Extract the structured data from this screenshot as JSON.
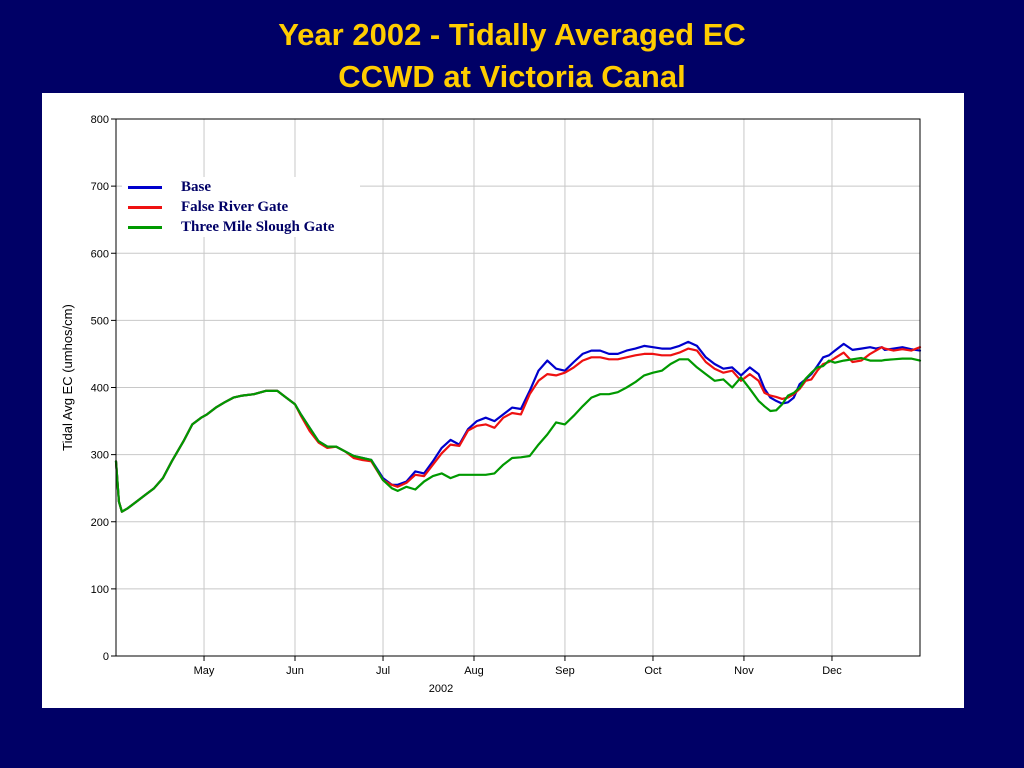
{
  "slide": {
    "title_line1": "Year 2002 - Tidally Averaged EC",
    "title_line2": "CCWD at Victoria Canal",
    "background_color": "#000066",
    "title_color": "#FFCC00"
  },
  "chart_data": {
    "type": "line",
    "title": "",
    "xlabel": "2002",
    "ylabel": "Tidal Avg EC (umhos/cm)",
    "xlim": [
      "2002-04-01",
      "2002-12-31"
    ],
    "ylim": [
      0,
      800
    ],
    "yticks": [
      0,
      100,
      200,
      300,
      400,
      500,
      600,
      700,
      800
    ],
    "xticks": [
      {
        "date": "2002-05-01",
        "label": "May"
      },
      {
        "date": "2002-06-01",
        "label": "Jun"
      },
      {
        "date": "2002-07-01",
        "label": "Jul"
      },
      {
        "date": "2002-08-01",
        "label": "Aug"
      },
      {
        "date": "2002-09-01",
        "label": "Sep"
      },
      {
        "date": "2002-10-01",
        "label": "Oct"
      },
      {
        "date": "2002-11-01",
        "label": "Nov"
      },
      {
        "date": "2002-12-01",
        "label": "Dec"
      }
    ],
    "grid": true,
    "legend_position": "top-left",
    "series": [
      {
        "name": "Base",
        "color": "#0000CC",
        "x": [
          "2002-04-01",
          "2002-04-02",
          "2002-04-03",
          "2002-04-05",
          "2002-04-08",
          "2002-04-11",
          "2002-04-14",
          "2002-04-17",
          "2002-04-20",
          "2002-04-24",
          "2002-04-27",
          "2002-04-30",
          "2002-05-02",
          "2002-05-05",
          "2002-05-08",
          "2002-05-11",
          "2002-05-14",
          "2002-05-18",
          "2002-05-22",
          "2002-05-26",
          "2002-05-29",
          "2002-06-01",
          "2002-06-03",
          "2002-06-06",
          "2002-06-09",
          "2002-06-12",
          "2002-06-15",
          "2002-06-18",
          "2002-06-21",
          "2002-06-24",
          "2002-06-27",
          "2002-07-01",
          "2002-07-04",
          "2002-07-06",
          "2002-07-09",
          "2002-07-12",
          "2002-07-15",
          "2002-07-18",
          "2002-07-21",
          "2002-07-24",
          "2002-07-27",
          "2002-07-30",
          "2002-08-02",
          "2002-08-05",
          "2002-08-08",
          "2002-08-11",
          "2002-08-14",
          "2002-08-17",
          "2002-08-20",
          "2002-08-23",
          "2002-08-26",
          "2002-08-29",
          "2002-09-01",
          "2002-09-04",
          "2002-09-07",
          "2002-09-10",
          "2002-09-13",
          "2002-09-16",
          "2002-09-19",
          "2002-09-22",
          "2002-09-25",
          "2002-09-28",
          "2002-10-01",
          "2002-10-04",
          "2002-10-07",
          "2002-10-10",
          "2002-10-13",
          "2002-10-16",
          "2002-10-19",
          "2002-10-22",
          "2002-10-25",
          "2002-10-28",
          "2002-10-31",
          "2002-11-03",
          "2002-11-06",
          "2002-11-08",
          "2002-11-10",
          "2002-11-12",
          "2002-11-14",
          "2002-11-16",
          "2002-11-18",
          "2002-11-20",
          "2002-11-22",
          "2002-11-24",
          "2002-11-26",
          "2002-11-28",
          "2002-11-30",
          "2002-12-02",
          "2002-12-05",
          "2002-12-08",
          "2002-12-11",
          "2002-12-14",
          "2002-12-16",
          "2002-12-18",
          "2002-12-19",
          "2002-12-22",
          "2002-12-25",
          "2002-12-28",
          "2002-12-31"
        ],
        "y": [
          290,
          230,
          215,
          220,
          230,
          240,
          250,
          265,
          290,
          320,
          345,
          355,
          360,
          370,
          378,
          385,
          388,
          390,
          395,
          395,
          385,
          375,
          360,
          340,
          320,
          312,
          312,
          305,
          298,
          295,
          292,
          265,
          255,
          255,
          260,
          275,
          272,
          290,
          310,
          322,
          315,
          338,
          350,
          355,
          350,
          360,
          370,
          368,
          395,
          425,
          440,
          428,
          425,
          438,
          450,
          455,
          455,
          450,
          450,
          455,
          458,
          462,
          460,
          458,
          458,
          462,
          468,
          462,
          445,
          435,
          428,
          430,
          418,
          430,
          420,
          398,
          385,
          380,
          376,
          378,
          385,
          405,
          412,
          420,
          432,
          445,
          448,
          455,
          465,
          456,
          458,
          460,
          458,
          460,
          456,
          458,
          460,
          457,
          455
        ]
      },
      {
        "name": "False River Gate",
        "color": "#EE1111",
        "x": [
          "2002-04-01",
          "2002-04-02",
          "2002-04-03",
          "2002-04-05",
          "2002-04-08",
          "2002-04-11",
          "2002-04-14",
          "2002-04-17",
          "2002-04-20",
          "2002-04-24",
          "2002-04-27",
          "2002-04-30",
          "2002-05-02",
          "2002-05-05",
          "2002-05-08",
          "2002-05-11",
          "2002-05-14",
          "2002-05-18",
          "2002-05-22",
          "2002-05-26",
          "2002-05-29",
          "2002-06-01",
          "2002-06-03",
          "2002-06-06",
          "2002-06-09",
          "2002-06-12",
          "2002-06-15",
          "2002-06-18",
          "2002-06-21",
          "2002-06-24",
          "2002-06-27",
          "2002-07-01",
          "2002-07-04",
          "2002-07-06",
          "2002-07-09",
          "2002-07-12",
          "2002-07-15",
          "2002-07-18",
          "2002-07-21",
          "2002-07-24",
          "2002-07-27",
          "2002-07-30",
          "2002-08-02",
          "2002-08-05",
          "2002-08-08",
          "2002-08-11",
          "2002-08-14",
          "2002-08-17",
          "2002-08-20",
          "2002-08-23",
          "2002-08-26",
          "2002-08-29",
          "2002-09-01",
          "2002-09-04",
          "2002-09-07",
          "2002-09-10",
          "2002-09-13",
          "2002-09-16",
          "2002-09-19",
          "2002-09-22",
          "2002-09-25",
          "2002-09-28",
          "2002-10-01",
          "2002-10-04",
          "2002-10-07",
          "2002-10-10",
          "2002-10-13",
          "2002-10-16",
          "2002-10-19",
          "2002-10-22",
          "2002-10-25",
          "2002-10-28",
          "2002-10-31",
          "2002-11-03",
          "2002-11-06",
          "2002-11-08",
          "2002-11-10",
          "2002-11-12",
          "2002-11-14",
          "2002-11-16",
          "2002-11-18",
          "2002-11-20",
          "2002-11-22",
          "2002-11-24",
          "2002-11-26",
          "2002-11-28",
          "2002-11-30",
          "2002-12-02",
          "2002-12-05",
          "2002-12-08",
          "2002-12-11",
          "2002-12-14",
          "2002-12-16",
          "2002-12-18",
          "2002-12-19",
          "2002-12-22",
          "2002-12-25",
          "2002-12-28",
          "2002-12-31"
        ],
        "y": [
          290,
          230,
          215,
          220,
          230,
          240,
          250,
          265,
          290,
          320,
          345,
          355,
          360,
          370,
          378,
          385,
          388,
          390,
          395,
          395,
          385,
          375,
          358,
          335,
          318,
          310,
          312,
          305,
          295,
          292,
          290,
          262,
          255,
          252,
          258,
          270,
          268,
          285,
          302,
          315,
          313,
          336,
          343,
          345,
          340,
          355,
          362,
          360,
          390,
          410,
          420,
          418,
          422,
          430,
          440,
          445,
          445,
          442,
          442,
          445,
          448,
          450,
          450,
          448,
          448,
          452,
          458,
          455,
          438,
          428,
          422,
          425,
          410,
          420,
          410,
          392,
          388,
          386,
          383,
          385,
          390,
          398,
          410,
          412,
          425,
          435,
          438,
          444,
          452,
          438,
          440,
          450,
          455,
          460,
          458,
          455,
          457,
          455,
          460
        ]
      },
      {
        "name": "Three Mile Slough Gate",
        "color": "#009900",
        "x": [
          "2002-04-01",
          "2002-04-02",
          "2002-04-03",
          "2002-04-05",
          "2002-04-08",
          "2002-04-11",
          "2002-04-14",
          "2002-04-17",
          "2002-04-20",
          "2002-04-24",
          "2002-04-27",
          "2002-04-30",
          "2002-05-02",
          "2002-05-05",
          "2002-05-08",
          "2002-05-11",
          "2002-05-14",
          "2002-05-18",
          "2002-05-22",
          "2002-05-26",
          "2002-05-29",
          "2002-06-01",
          "2002-06-03",
          "2002-06-06",
          "2002-06-09",
          "2002-06-12",
          "2002-06-15",
          "2002-06-18",
          "2002-06-21",
          "2002-06-24",
          "2002-06-27",
          "2002-07-01",
          "2002-07-04",
          "2002-07-06",
          "2002-07-09",
          "2002-07-12",
          "2002-07-15",
          "2002-07-18",
          "2002-07-21",
          "2002-07-24",
          "2002-07-27",
          "2002-07-30",
          "2002-08-02",
          "2002-08-05",
          "2002-08-08",
          "2002-08-11",
          "2002-08-14",
          "2002-08-17",
          "2002-08-20",
          "2002-08-23",
          "2002-08-26",
          "2002-08-29",
          "2002-09-01",
          "2002-09-04",
          "2002-09-07",
          "2002-09-10",
          "2002-09-13",
          "2002-09-16",
          "2002-09-19",
          "2002-09-22",
          "2002-09-25",
          "2002-09-28",
          "2002-10-01",
          "2002-10-04",
          "2002-10-07",
          "2002-10-10",
          "2002-10-13",
          "2002-10-16",
          "2002-10-19",
          "2002-10-22",
          "2002-10-25",
          "2002-10-28",
          "2002-10-31",
          "2002-11-03",
          "2002-11-06",
          "2002-11-08",
          "2002-11-10",
          "2002-11-12",
          "2002-11-14",
          "2002-11-16",
          "2002-11-18",
          "2002-11-20",
          "2002-11-22",
          "2002-11-24",
          "2002-11-26",
          "2002-11-28",
          "2002-11-30",
          "2002-12-02",
          "2002-12-05",
          "2002-12-08",
          "2002-12-11",
          "2002-12-14",
          "2002-12-16",
          "2002-12-18",
          "2002-12-19",
          "2002-12-22",
          "2002-12-25",
          "2002-12-28",
          "2002-12-31"
        ],
        "y": [
          290,
          230,
          215,
          220,
          230,
          240,
          250,
          265,
          290,
          320,
          345,
          355,
          360,
          370,
          378,
          385,
          388,
          390,
          395,
          395,
          385,
          375,
          360,
          340,
          320,
          312,
          312,
          305,
          298,
          295,
          292,
          262,
          250,
          246,
          252,
          248,
          260,
          268,
          272,
          265,
          270,
          270,
          270,
          270,
          272,
          285,
          295,
          296,
          298,
          315,
          330,
          348,
          345,
          358,
          372,
          385,
          390,
          390,
          393,
          400,
          408,
          418,
          422,
          425,
          435,
          442,
          442,
          430,
          420,
          410,
          412,
          400,
          415,
          398,
          380,
          372,
          365,
          366,
          375,
          388,
          392,
          400,
          413,
          422,
          430,
          432,
          440,
          437,
          440,
          442,
          444,
          440,
          440,
          440,
          441,
          442,
          443,
          443,
          440
        ]
      }
    ]
  }
}
